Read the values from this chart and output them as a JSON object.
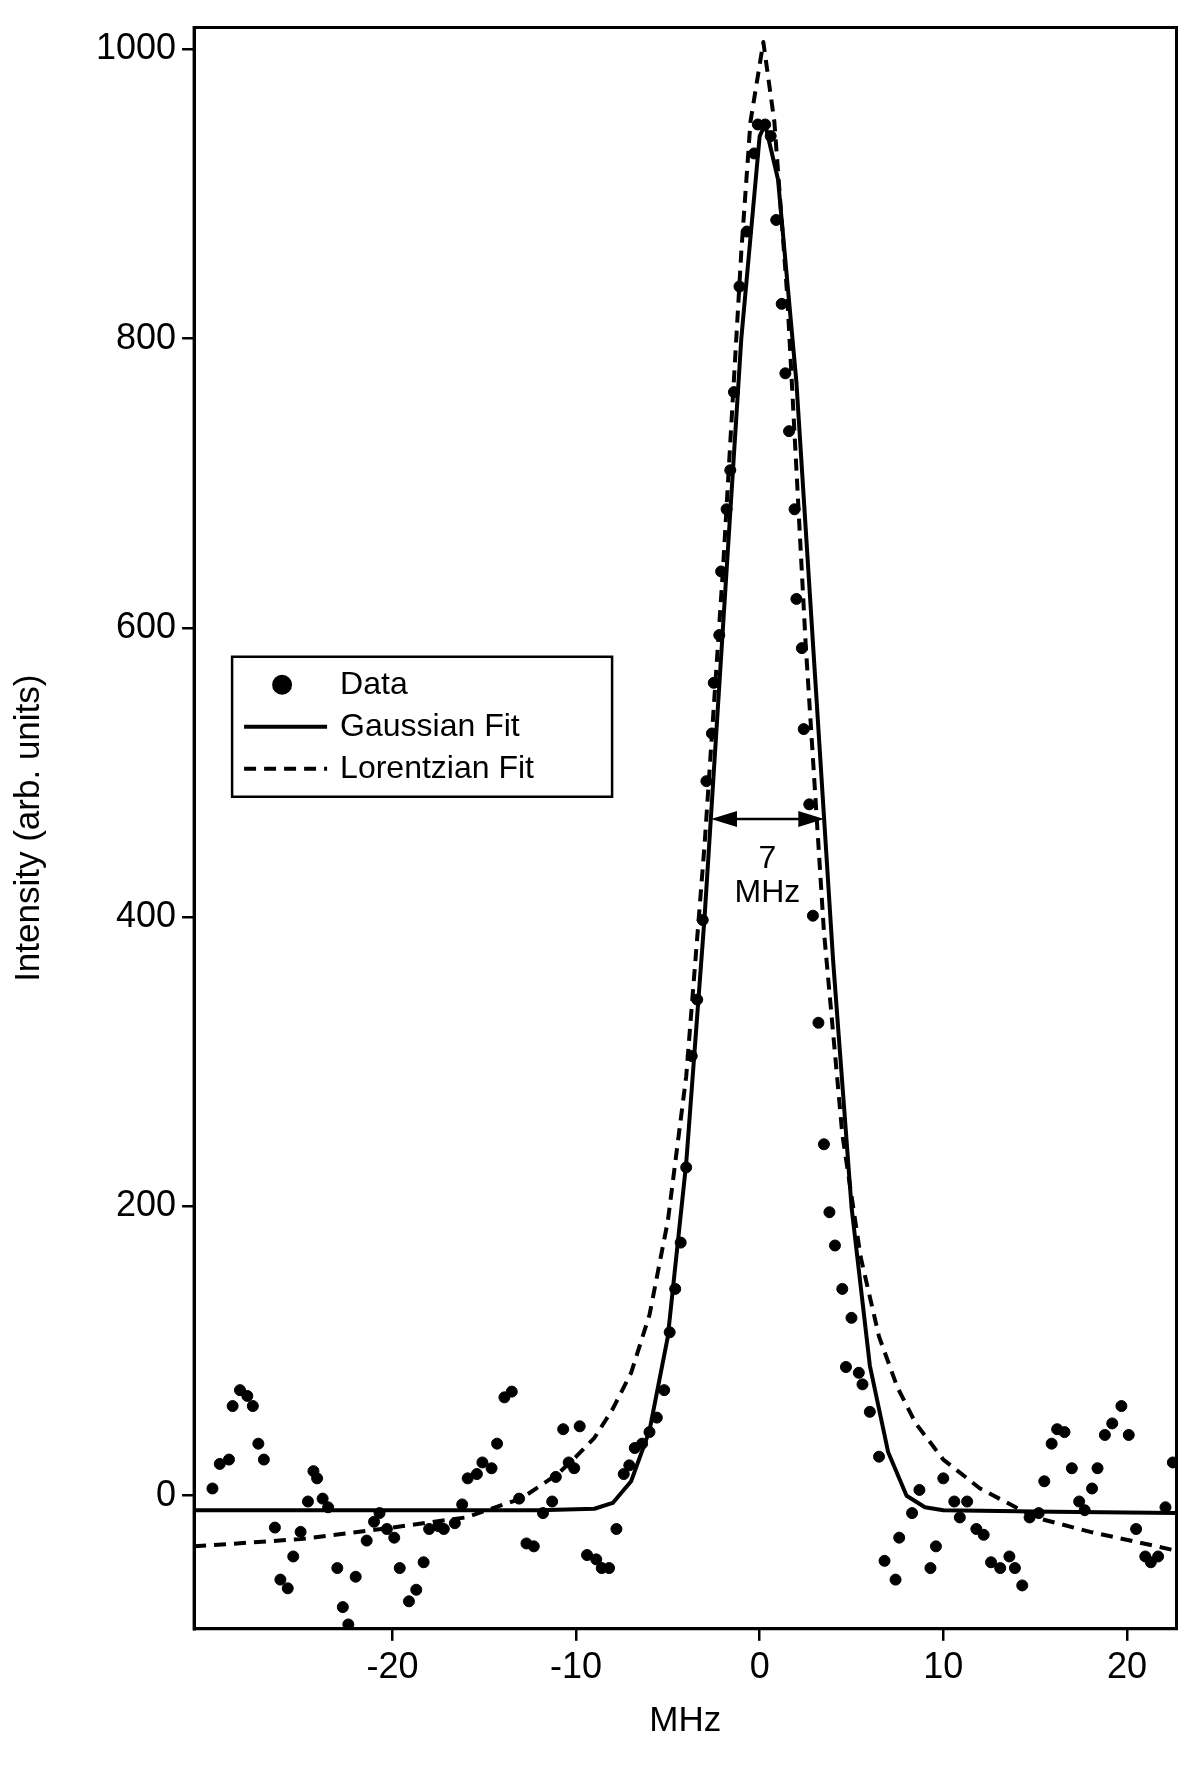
{
  "chart_data": {
    "type": "scatter",
    "xlabel": "MHz",
    "ylabel": "Intensity (arb. units)",
    "xlim": [
      -30.8,
      22.7
    ],
    "ylim": [
      -92,
      1015
    ],
    "xticks": [
      -20,
      -10,
      0,
      10,
      20
    ],
    "yticks": [
      0,
      200,
      400,
      600,
      800,
      1000
    ],
    "grid": false,
    "legend": "left",
    "annotations": [
      "7 MHz"
    ],
    "series": [
      {
        "name": "Data",
        "type": "scatter",
        "marker": "circle",
        "color": "#000000",
        "x": [
          -29.8,
          -29.4,
          -28.9,
          -28.7,
          -28.3,
          -27.9,
          -27.6,
          -27.3,
          -27,
          -26.4,
          -26.1,
          -25.7,
          -25.4,
          -25,
          -24.6,
          -24.3,
          -24.1,
          -23.8,
          -23.5,
          -23,
          -22.7,
          -22.4,
          -22,
          -21.4,
          -21,
          -20.7,
          -20.3,
          -19.9,
          -19.6,
          -19.1,
          -18.7,
          -18.3,
          -18,
          -17.5,
          -17.2,
          -16.6,
          -16.2,
          -15.9,
          -15.4,
          -15.1,
          -14.6,
          -14.3,
          -13.9,
          -13.5,
          -13.1,
          -12.7,
          -12.3,
          -11.8,
          -11.3,
          -11.1,
          -10.7,
          -10.4,
          -10.1,
          -9.8,
          -9.4,
          -8.9,
          -8.6,
          -8.2,
          -7.8,
          -7.4,
          -7.1,
          -6.8,
          -6.4,
          -6,
          -5.6,
          -5.2,
          -4.9,
          -4.6,
          -4.3,
          -4,
          -3.7,
          -3.4,
          -3.1,
          -2.9,
          -2.6,
          -2.5,
          -2.2,
          -2.1,
          -1.8,
          -1.6,
          -1.4,
          -1.1,
          -0.7,
          -0.3,
          -0.1,
          0.3,
          0.6,
          0.9,
          1.2,
          1.4,
          1.6,
          1.9,
          2,
          2.3,
          2.4,
          2.7,
          2.9,
          3.2,
          3.5,
          3.8,
          4.1,
          4.5,
          4.7,
          5,
          5.4,
          5.6,
          6,
          6.5,
          6.8,
          7.4,
          7.6,
          8.3,
          8.7,
          9.3,
          9.6,
          10,
          10.6,
          10.9,
          11.3,
          11.8,
          12.2,
          12.6,
          13.1,
          13.6,
          13.9,
          14.3,
          14.7,
          15.2,
          15.5,
          15.9,
          16.2,
          16.6,
          17,
          17.4,
          17.7,
          18.1,
          18.4,
          18.8,
          19.2,
          19.7,
          20.1,
          20.5,
          21,
          21.3,
          21.7,
          22.1,
          22.5
        ],
        "values": [
          5,
          22,
          25,
          62,
          73,
          69,
          62,
          36,
          25,
          -22,
          -58,
          -64,
          -42,
          -25,
          -4,
          17,
          12,
          -2,
          -8,
          -50,
          -77,
          -89,
          -56,
          -31,
          -18,
          -12,
          -23,
          -29,
          -50,
          -73,
          -65,
          -46,
          -23,
          -21,
          -23,
          -19,
          -6,
          12,
          15,
          23,
          19,
          36,
          68,
          72,
          -2,
          -33,
          -35,
          -12,
          -4,
          13,
          46,
          23,
          19,
          48,
          -41,
          -44,
          -50,
          -50,
          -23,
          15,
          21,
          33,
          36,
          44,
          54,
          73,
          113,
          143,
          175,
          227,
          304,
          343,
          398,
          494,
          527,
          562,
          595,
          639,
          682,
          709,
          763,
          836,
          874,
          928,
          948,
          948,
          940,
          882,
          824,
          776,
          736,
          682,
          620,
          586,
          530,
          478,
          401,
          327,
          243,
          196,
          173,
          143,
          89,
          123,
          85,
          77,
          58,
          27,
          -45,
          -58,
          -29,
          -12,
          4,
          -50,
          -35,
          12,
          -4,
          -15,
          -4,
          -23,
          -27,
          -46,
          -50,
          -42,
          -50,
          -62,
          -15,
          -12,
          10,
          36,
          46,
          44,
          19,
          -4,
          -10,
          5,
          19,
          42,
          50,
          62,
          42,
          -23,
          -42,
          -46,
          -42,
          -8,
          23
        ]
      },
      {
        "name": "Gaussian Fit",
        "type": "line",
        "marker": "none",
        "line_style": "solid",
        "color": "#000000",
        "x": [
          -30.8,
          -20,
          -12,
          -9,
          -8,
          -7,
          -6,
          -5,
          -4,
          -3,
          -2,
          -1,
          0,
          0.3,
          1,
          2,
          3,
          4,
          5,
          6,
          7,
          8,
          9,
          10,
          16,
          22.7
        ],
        "values": [
          -10,
          -10,
          -10,
          -9,
          -5,
          10,
          45,
          110,
          230,
          400,
          600,
          800,
          940,
          948,
          910,
          770,
          570,
          370,
          200,
          90,
          30,
          0,
          -8,
          -10,
          -11,
          -12
        ]
      },
      {
        "name": "Lorentzian Fit",
        "type": "line",
        "marker": "none",
        "line_style": "dashed",
        "color": "#000000",
        "x": [
          -30.8,
          -25,
          -20,
          -16,
          -13,
          -11,
          -10,
          -9,
          -8,
          -7,
          -6,
          -5,
          -4,
          -3,
          -2,
          -1,
          -0.5,
          0.2,
          0.8,
          1.5,
          2.5,
          3.5,
          4.5,
          5.5,
          6.5,
          7.5,
          8.5,
          10,
          12,
          15,
          18,
          22.7
        ],
        "values": [
          -35,
          -30,
          -22,
          -15,
          -2,
          15,
          27,
          40,
          60,
          85,
          125,
          190,
          290,
          450,
          640,
          860,
          950,
          1005,
          950,
          830,
          590,
          390,
          250,
          165,
          110,
          75,
          50,
          25,
          5,
          -15,
          -25,
          -38
        ]
      }
    ]
  }
}
